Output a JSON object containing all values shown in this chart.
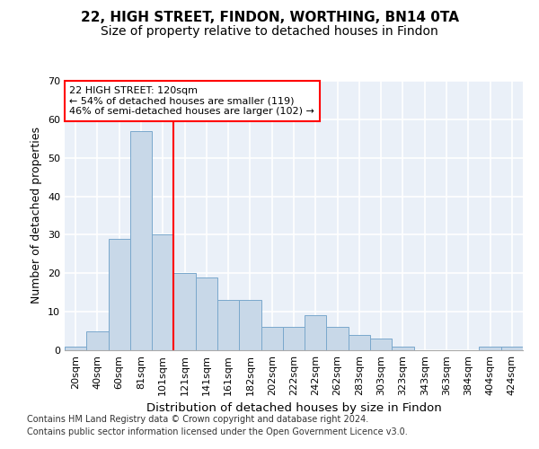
{
  "title1": "22, HIGH STREET, FINDON, WORTHING, BN14 0TA",
  "title2": "Size of property relative to detached houses in Findon",
  "xlabel": "Distribution of detached houses by size in Findon",
  "ylabel": "Number of detached properties",
  "categories": [
    "20sqm",
    "40sqm",
    "60sqm",
    "81sqm",
    "101sqm",
    "121sqm",
    "141sqm",
    "161sqm",
    "182sqm",
    "202sqm",
    "222sqm",
    "242sqm",
    "262sqm",
    "283sqm",
    "303sqm",
    "323sqm",
    "343sqm",
    "363sqm",
    "384sqm",
    "404sqm",
    "424sqm"
  ],
  "values": [
    1,
    5,
    29,
    57,
    30,
    20,
    19,
    13,
    13,
    6,
    6,
    9,
    6,
    4,
    3,
    1,
    0,
    0,
    0,
    1,
    1
  ],
  "bar_color": "#c8d8e8",
  "bar_edge_color": "#7aa8cc",
  "red_line_x": 4.5,
  "annotation_line1": "22 HIGH STREET: 120sqm",
  "annotation_line2": "← 54% of detached houses are smaller (119)",
  "annotation_line3": "46% of semi-detached houses are larger (102) →",
  "annotation_box_color": "white",
  "annotation_box_edge_color": "red",
  "red_line_color": "red",
  "ylim": [
    0,
    70
  ],
  "yticks": [
    0,
    10,
    20,
    30,
    40,
    50,
    60,
    70
  ],
  "bg_color": "#eaf0f8",
  "grid_color": "white",
  "footer1": "Contains HM Land Registry data © Crown copyright and database right 2024.",
  "footer2": "Contains public sector information licensed under the Open Government Licence v3.0.",
  "title1_fontsize": 11,
  "title2_fontsize": 10,
  "xlabel_fontsize": 9.5,
  "ylabel_fontsize": 9,
  "tick_fontsize": 8,
  "annotation_fontsize": 8,
  "footer_fontsize": 7
}
